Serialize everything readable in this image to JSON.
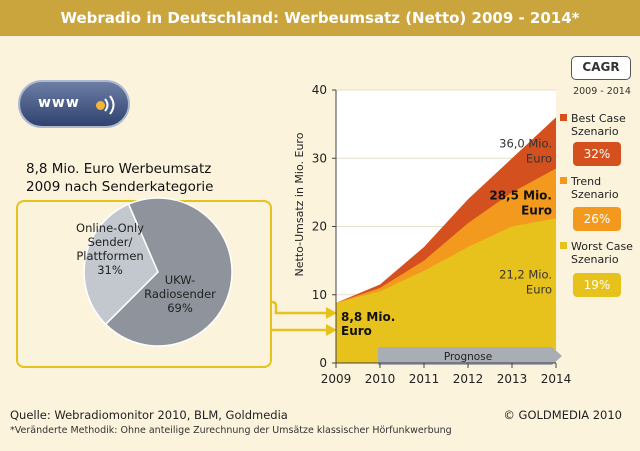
{
  "header": {
    "title": "Webradio in Deutschland: Werbeumsatz (Netto) 2009 - 2014*"
  },
  "badge": {
    "text": "www"
  },
  "pie": {
    "title_line1": "8,8 Mio. Euro Werbeumsatz",
    "title_line2": "2009 nach Senderkategorie",
    "colors": {
      "online": "#c3c7ce",
      "ukw": "#8e939c"
    }
  },
  "cagr": {
    "label": "CAGR",
    "years": "2009 - 2014",
    "best": {
      "line1": "Best Case",
      "line2": "Szenario",
      "value": "32%",
      "color": "#d4501e"
    },
    "trend": {
      "line1": "Trend",
      "line2": "Szenario",
      "value": "26%",
      "color": "#f39a1e"
    },
    "worst": {
      "line1": "Worst Case",
      "line2": "Szenario",
      "value": "19%",
      "color": "#e8c21c"
    }
  },
  "chart_data": [
    {
      "type": "pie",
      "title": "8,8 Mio. Euro Werbeumsatz 2009 nach Senderkategorie",
      "slices": [
        {
          "name": "Online-Only Sender/ Plattformen",
          "lines": [
            "Online-Only",
            "Sender/",
            "Plattformen",
            "31%"
          ],
          "value": 31
        },
        {
          "name": "UKW-Radiosender",
          "lines": [
            "UKW-",
            "Radiosender",
            "69%"
          ],
          "value": 69
        }
      ]
    },
    {
      "type": "area",
      "ylabel": "Netto-Umsatz in Mio. Euro",
      "ylim": [
        0,
        40
      ],
      "yticks": [
        0,
        10,
        20,
        30,
        40
      ],
      "x": [
        "2009",
        "2010",
        "2011",
        "2012",
        "2013",
        "2014"
      ],
      "series": [
        {
          "name": "Best Case Szenario",
          "values": [
            8.8,
            11.5,
            17,
            24,
            30,
            36.0
          ],
          "color": "#d4501e"
        },
        {
          "name": "Trend Szenario",
          "values": [
            8.8,
            11,
            15,
            20.5,
            25,
            28.5
          ],
          "color": "#f39a1e"
        },
        {
          "name": "Worst Case Szenario",
          "values": [
            8.8,
            10.5,
            13.5,
            17,
            20,
            21.2
          ],
          "color": "#e8c21c"
        }
      ],
      "prognose_label": "Prognose",
      "annotations": [
        {
          "key": "start",
          "lines": [
            "8,8 Mio.",
            "Euro"
          ]
        },
        {
          "key": "best",
          "lines": [
            "36,0 Mio.",
            "Euro"
          ]
        },
        {
          "key": "trend",
          "lines": [
            "28,5 Mio.",
            "Euro"
          ]
        },
        {
          "key": "worst",
          "lines": [
            "21,2 Mio.",
            "Euro"
          ]
        }
      ]
    }
  ],
  "footer": {
    "source": "Quelle: Webradiomonitor 2010, BLM, Goldmedia",
    "note": "*Veränderte Methodik: Ohne anteilige Zurechnung der Umsätze klassischer Hörfunkwerbung",
    "copyright": "© GOLDMEDIA 2010"
  }
}
